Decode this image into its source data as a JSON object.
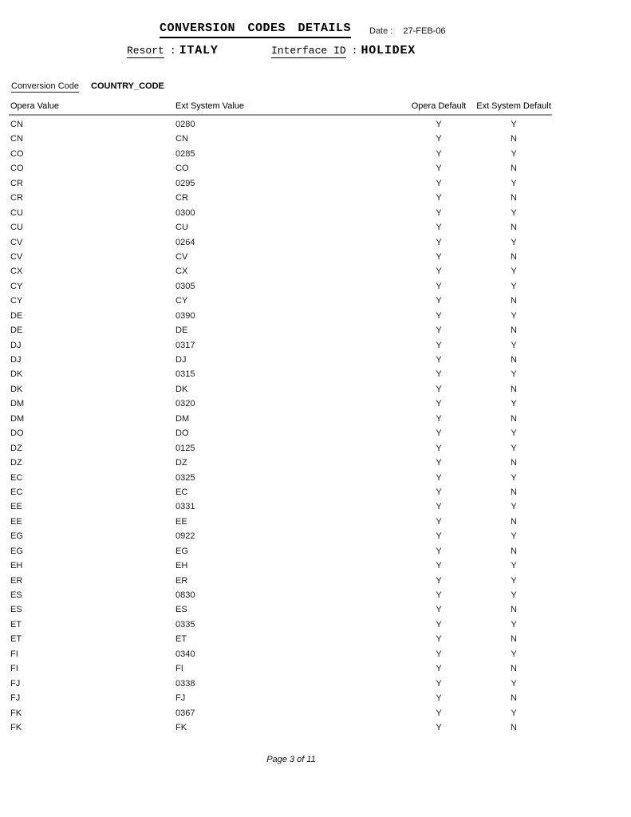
{
  "header": {
    "title": "CONVERSION CODES DETAILS",
    "date_label": "Date :",
    "date_value": "27-FEB-06",
    "resort_label": "Resort",
    "interface_label": "Interface ID",
    "separator": ":",
    "resort_value": "ITALY",
    "interface_value": "HOLIDEX"
  },
  "section": {
    "conversion_code_label": "Conversion Code",
    "conversion_code_value": "COUNTRY_CODE"
  },
  "table": {
    "columns": [
      "Opera Value",
      "Ext System Value",
      "Opera Default",
      "Ext System Default"
    ],
    "rows": [
      [
        "CN",
        "0280",
        "Y",
        "Y"
      ],
      [
        "CN",
        "CN",
        "Y",
        "N"
      ],
      [
        "CO",
        "0285",
        "Y",
        "Y"
      ],
      [
        "CO",
        "CO",
        "Y",
        "N"
      ],
      [
        "CR",
        "0295",
        "Y",
        "Y"
      ],
      [
        "CR",
        "CR",
        "Y",
        "N"
      ],
      [
        "CU",
        "0300",
        "Y",
        "Y"
      ],
      [
        "CU",
        "CU",
        "Y",
        "N"
      ],
      [
        "CV",
        "0264",
        "Y",
        "Y"
      ],
      [
        "CV",
        "CV",
        "Y",
        "N"
      ],
      [
        "CX",
        "CX",
        "Y",
        "Y"
      ],
      [
        "CY",
        "0305",
        "Y",
        "Y"
      ],
      [
        "CY",
        "CY",
        "Y",
        "N"
      ],
      [
        "DE",
        "0390",
        "Y",
        "Y"
      ],
      [
        "DE",
        "DE",
        "Y",
        "N"
      ],
      [
        "DJ",
        "0317",
        "Y",
        "Y"
      ],
      [
        "DJ",
        "DJ",
        "Y",
        "N"
      ],
      [
        "DK",
        "0315",
        "Y",
        "Y"
      ],
      [
        "DK",
        "DK",
        "Y",
        "N"
      ],
      [
        "DM",
        "0320",
        "Y",
        "Y"
      ],
      [
        "DM",
        "DM",
        "Y",
        "N"
      ],
      [
        "DO",
        "DO",
        "Y",
        "Y"
      ],
      [
        "DZ",
        "0125",
        "Y",
        "Y"
      ],
      [
        "DZ",
        "DZ",
        "Y",
        "N"
      ],
      [
        "EC",
        "0325",
        "Y",
        "Y"
      ],
      [
        "EC",
        "EC",
        "Y",
        "N"
      ],
      [
        "EE",
        "0331",
        "Y",
        "Y"
      ],
      [
        "EE",
        "EE",
        "Y",
        "N"
      ],
      [
        "EG",
        "0922",
        "Y",
        "Y"
      ],
      [
        "EG",
        "EG",
        "Y",
        "N"
      ],
      [
        "EH",
        "EH",
        "Y",
        "Y"
      ],
      [
        "ER",
        "ER",
        "Y",
        "Y"
      ],
      [
        "ES",
        "0830",
        "Y",
        "Y"
      ],
      [
        "ES",
        "ES",
        "Y",
        "N"
      ],
      [
        "ET",
        "0335",
        "Y",
        "Y"
      ],
      [
        "ET",
        "ET",
        "Y",
        "N"
      ],
      [
        "FI",
        "0340",
        "Y",
        "Y"
      ],
      [
        "FI",
        "FI",
        "Y",
        "N"
      ],
      [
        "FJ",
        "0338",
        "Y",
        "Y"
      ],
      [
        "FJ",
        "FJ",
        "Y",
        "N"
      ],
      [
        "FK",
        "0367",
        "Y",
        "Y"
      ],
      [
        "FK",
        "FK",
        "Y",
        "N"
      ]
    ]
  },
  "footer": {
    "page_label": "Page 3 of 11"
  }
}
